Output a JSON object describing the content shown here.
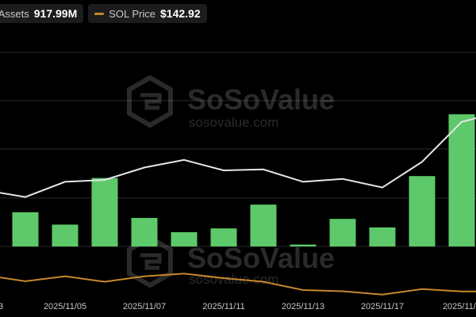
{
  "legend": {
    "net_assets_label": "et Assets",
    "net_assets_value": "917.99M",
    "sol_label": "SOL Price",
    "sol_value": "$142.92"
  },
  "watermark": {
    "brand": "SoSoValue",
    "url": "sosovalue.com"
  },
  "colors": {
    "bar": "#5dc96a",
    "net_assets_line": "#e6e6e6",
    "sol_line": "#c8872c",
    "grid": "#2a2a2a"
  },
  "chart_data": {
    "type": "bar",
    "x_tick_labels": [
      "03",
      "2025/11/05",
      "2025/11/07",
      "2025/11/11",
      "2025/11/13",
      "2025/11/17",
      "2025/11/1"
    ],
    "grid": true,
    "series": [
      {
        "name": "",
        "type": "bar",
        "values": [
          null,
          0.36,
          0.23,
          0.72,
          0.3,
          0.15,
          0.19,
          0.44,
          0.02,
          0.29,
          0.2,
          0.74,
          1.39,
          null
        ]
      },
      {
        "name": "et Assets",
        "type": "line",
        "values": [
          0.59,
          0.52,
          0.68,
          0.7,
          0.83,
          0.91,
          0.8,
          0.81,
          0.68,
          0.71,
          0.62,
          0.89,
          1.31,
          1.42
        ]
      },
      {
        "name": "SOL Price",
        "type": "line",
        "values": [
          0.82,
          0.57,
          0.78,
          0.55,
          0.78,
          0.89,
          0.7,
          0.55,
          0.2,
          0.15,
          0.01,
          0.24,
          0.14,
          0.15
        ]
      }
    ]
  }
}
